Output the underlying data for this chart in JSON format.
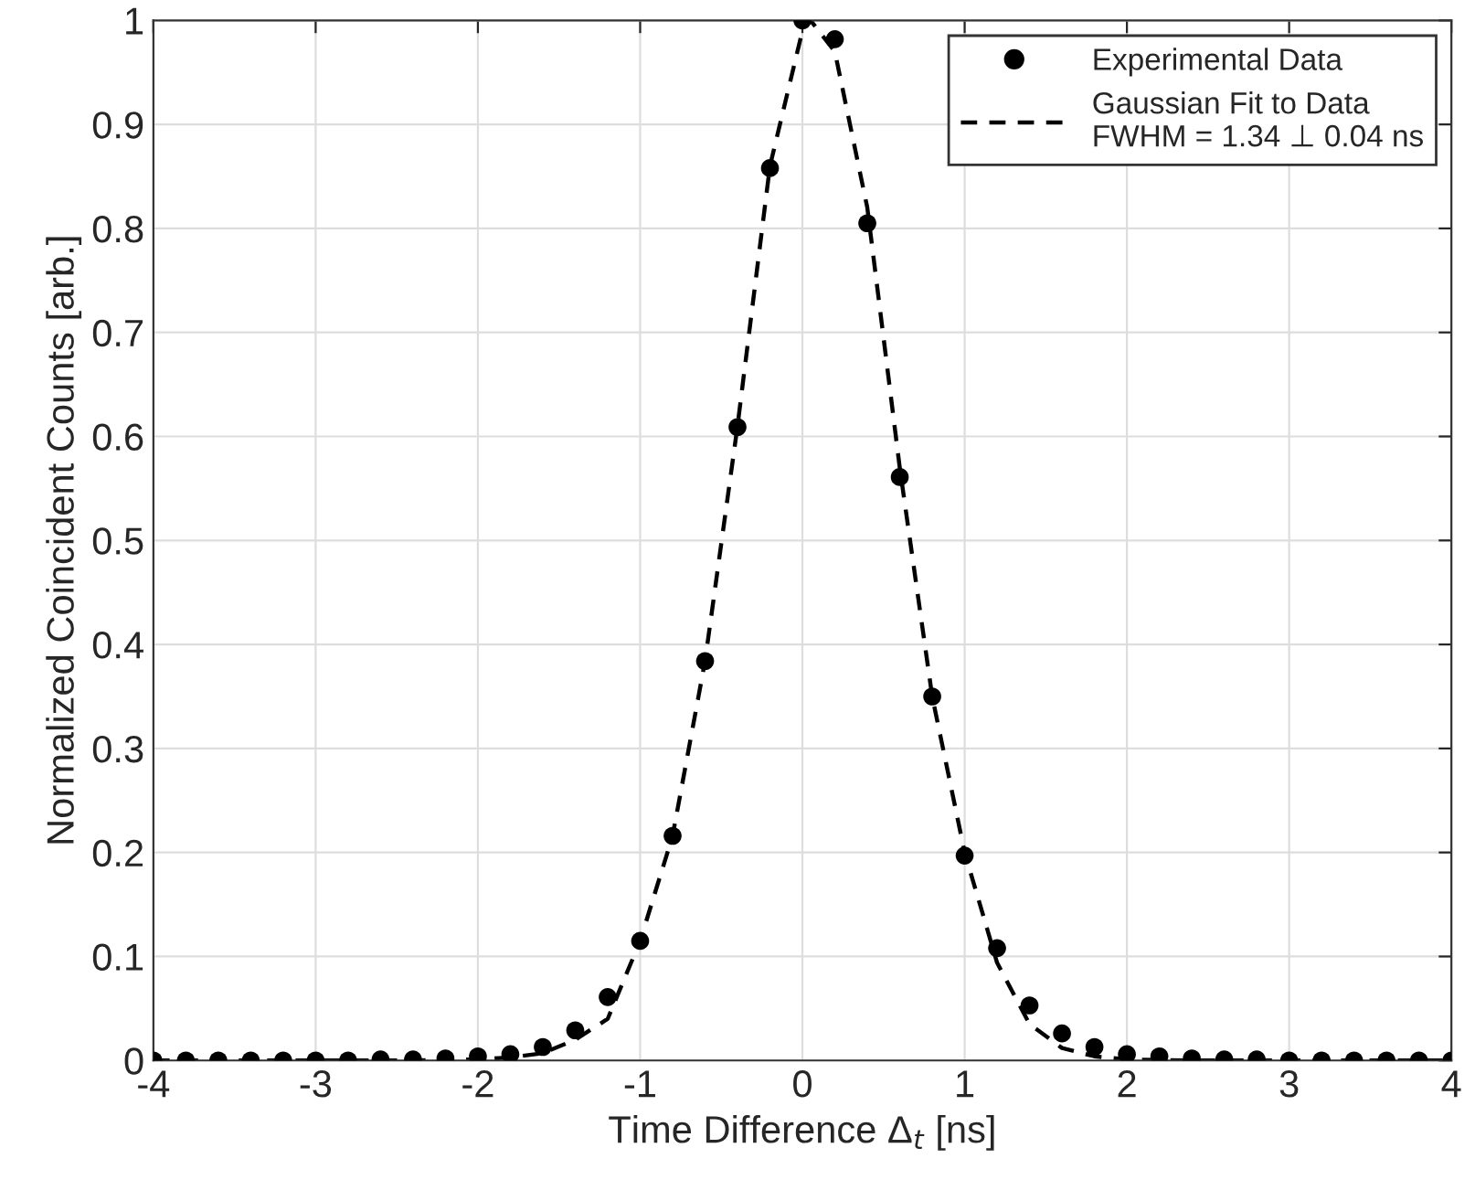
{
  "chart_data": {
    "type": "scatter",
    "xlabel": "Time Difference Δ$_{t}$ [ns]",
    "ylabel": "Normalized Coincident Counts [arb.]",
    "series": [
      {
        "name": "Experimental Data",
        "color": "#000000",
        "marker": "circle",
        "x": [
          -4,
          -3.8,
          -3.6,
          -3.4,
          -3.2,
          -3,
          -2.8,
          -2.6,
          -2.4,
          -2.2,
          -2,
          -1.8,
          -1.6,
          -1.4,
          -1.2,
          -1,
          -0.8,
          -0.6,
          -0.4,
          -0.2,
          0,
          0.2,
          0.4,
          0.6,
          0.8,
          1,
          1.2,
          1.4,
          1.6,
          1.8,
          2,
          2.2,
          2.4,
          2.6,
          2.8,
          3,
          3.2,
          3.4,
          3.6,
          3.8,
          4
        ],
        "values": [
          0,
          0,
          0,
          0,
          0,
          0,
          0,
          0.001,
          0.001,
          0.002,
          0.004,
          0.006,
          0.013,
          0.029,
          0.061,
          0.115,
          0.216,
          0.384,
          0.609,
          0.858,
          1,
          0.982,
          0.805,
          0.561,
          0.35,
          0.197,
          0.108,
          0.053,
          0.026,
          0.013,
          0.006,
          0.004,
          0.002,
          0.001,
          0.001,
          0,
          0,
          0,
          0,
          0,
          0
        ]
      },
      {
        "name": "Gaussian Fit to Data\nFWHM = 1.34 ⊥ 0.04 ns",
        "type": "line",
        "color": "#000000",
        "line_style": "dashed",
        "marker": "none",
        "x": [
          -4,
          -2.4,
          -2,
          -1.8,
          -1.6,
          -1.4,
          -1.2,
          -1,
          -0.8,
          -0.6,
          -0.4,
          -0.2,
          0,
          0.05,
          0.2,
          0.4,
          0.6,
          0.8,
          1,
          1.2,
          1.4,
          1.6,
          1.8,
          2,
          2.4,
          4
        ],
        "values": [
          0,
          0,
          0.001,
          0.003,
          0.007,
          0.02,
          0.04,
          0.115,
          0.216,
          0.384,
          0.61,
          0.86,
          0.99,
          1,
          0.97,
          0.82,
          0.57,
          0.35,
          0.2,
          0.094,
          0.035,
          0.012,
          0.004,
          0.001,
          0,
          0
        ]
      }
    ],
    "xlim": [
      -4,
      4
    ],
    "xticks": [
      -4,
      -3,
      -2,
      -1,
      0,
      1,
      2,
      3,
      4
    ],
    "ylim": [
      0,
      1
    ],
    "yticks": [
      0,
      0.1,
      0.2,
      0.3,
      0.4,
      0.5,
      0.6,
      0.7,
      0.8,
      0.9,
      1
    ],
    "grid": true,
    "legend": "top right"
  }
}
